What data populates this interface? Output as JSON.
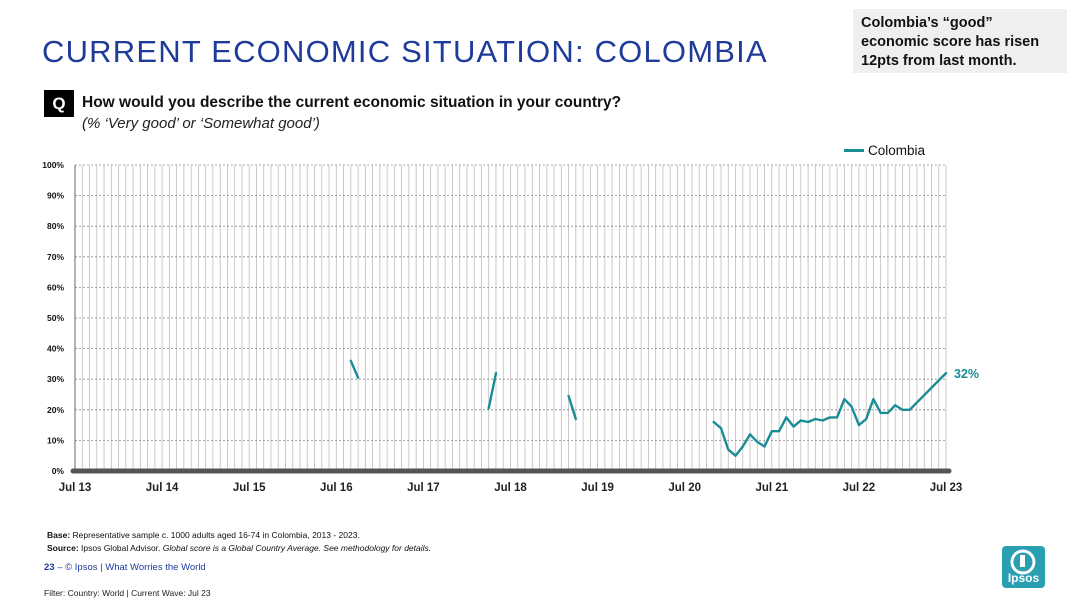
{
  "header": {
    "title": "CURRENT ECONOMIC SITUATION: COLOMBIA",
    "callout": "Colombia’s “good” economic score has risen 12pts from last month."
  },
  "question": {
    "marker": "Q",
    "text": "How would you describe the current economic situation in your country?",
    "subtext": "(% ‘Very good’ or ‘Somewhat good’)"
  },
  "colors": {
    "title": "#1f3b9a",
    "series": "#1a8c94",
    "grid": "#bdbdbd",
    "baseline": "#555555",
    "logo": "#2a9fb0"
  },
  "chart_data": {
    "type": "line",
    "ylim": [
      0,
      100
    ],
    "yticks": [
      "0%",
      "10%",
      "20%",
      "30%",
      "40%",
      "50%",
      "60%",
      "70%",
      "80%",
      "90%",
      "100%"
    ],
    "xticks": [
      "Jul 13",
      "Jul 14",
      "Jul 15",
      "Jul 16",
      "Jul 17",
      "Jul 18",
      "Jul 19",
      "Jul 20",
      "Jul 21",
      "Jul 22",
      "Jul 23"
    ],
    "x_start": "2013-07",
    "x_end": "2023-07",
    "legend": "top-right",
    "grid": true,
    "series": [
      {
        "name": "Colombia",
        "segments": [
          [
            [
              "2016-09",
              36
            ],
            [
              "2016-10",
              30.5
            ]
          ],
          [
            [
              "2018-04",
              20.5
            ],
            [
              "2018-05",
              32
            ]
          ],
          [
            [
              "2019-03",
              24.5
            ],
            [
              "2019-04",
              17
            ]
          ],
          [
            [
              "2020-11",
              16
            ],
            [
              "2020-12",
              14
            ],
            [
              "2021-01",
              7
            ],
            [
              "2021-02",
              5
            ],
            [
              "2021-03",
              8
            ],
            [
              "2021-04",
              12
            ],
            [
              "2021-05",
              9.5
            ],
            [
              "2021-06",
              8
            ],
            [
              "2021-07",
              13
            ],
            [
              "2021-08",
              13
            ],
            [
              "2021-09",
              17.5
            ],
            [
              "2021-10",
              14.5
            ],
            [
              "2021-11",
              16.5
            ],
            [
              "2021-12",
              16
            ],
            [
              "2022-01",
              17
            ],
            [
              "2022-02",
              16.5
            ],
            [
              "2022-03",
              17.5
            ],
            [
              "2022-04",
              17.5
            ],
            [
              "2022-05",
              23.5
            ],
            [
              "2022-06",
              21
            ],
            [
              "2022-07",
              15
            ],
            [
              "2022-08",
              17
            ],
            [
              "2022-09",
              23.5
            ],
            [
              "2022-10",
              19
            ],
            [
              "2022-11",
              19
            ],
            [
              "2022-12",
              21.5
            ],
            [
              "2023-01",
              20
            ],
            [
              "2023-02",
              20
            ],
            [
              "2023-07",
              32
            ]
          ]
        ],
        "end_label": "32%"
      }
    ]
  },
  "notes": {
    "base_label": "Base:",
    "base_text": " Representative sample c. 1000 adults aged 16-74 in Colombia, 2013 - 2023.",
    "source_label": "Source:",
    "source_text": " Ipsos Global Advisor. ",
    "source_italic": "Global score is a Global Country Average. See methodology for details."
  },
  "footer": {
    "page": "23",
    "dash": " – ",
    "text": "© Ipsos | What Worries the World",
    "filter": "Filter: Country: World | Current Wave: Jul 23"
  },
  "logo": {
    "text": "Ipsos"
  }
}
